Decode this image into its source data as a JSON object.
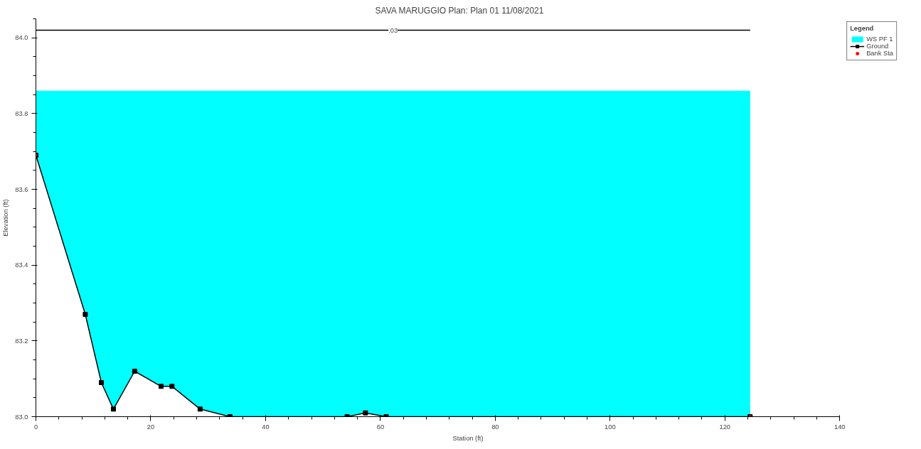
{
  "chart_data": {
    "type": "line",
    "title": "SAVA MARUGGIO     Plan: Plan 01    11/08/2021",
    "xlabel": "Station (ft)",
    "ylabel": "Elevation (ft)",
    "legend_title": "Legend",
    "series": [
      {
        "name": "WS PF 1",
        "type": "area",
        "color": "#00ffff",
        "x": [
          0,
          124.4
        ],
        "values": [
          83.86,
          83.86
        ]
      },
      {
        "name": "Ground",
        "type": "line",
        "color": "#000000",
        "marker": "square",
        "x": [
          0,
          8.6,
          11.4,
          13.5,
          17.2,
          21.8,
          23.7,
          28.6,
          33.8,
          54.2,
          57.4,
          61.0,
          124.4
        ],
        "values": [
          83.69,
          83.27,
          83.09,
          83.02,
          83.12,
          83.08,
          83.08,
          83.02,
          83.0,
          83.0,
          83.01,
          83.0,
          83.0
        ]
      },
      {
        "name": "Bank Sta",
        "type": "scatter",
        "color": "#ff0000",
        "marker": "circle",
        "x": [
          0,
          124.4
        ],
        "values": [
          83.69,
          83.0
        ]
      },
      {
        "color": "#000000",
        "x": [
          0,
          124.4
        ],
        "values": [
          84.02,
          84.02
        ]
      }
    ],
    "annotations": [
      {
        "text": ".03",
        "x": 62.2,
        "y": 84.02
      }
    ],
    "xlim": [
      0,
      140
    ],
    "xticks": [
      0,
      20,
      40,
      60,
      80,
      100,
      120,
      140
    ],
    "ylim": [
      83.0,
      84.05
    ],
    "yticks": [
      {
        "value": 83.0,
        "label": "83.0"
      },
      83.2,
      83.4,
      83.6,
      83.8,
      {
        "value": 84.0,
        "label": "84.0"
      }
    ],
    "grid": false,
    "legend": "top right"
  }
}
